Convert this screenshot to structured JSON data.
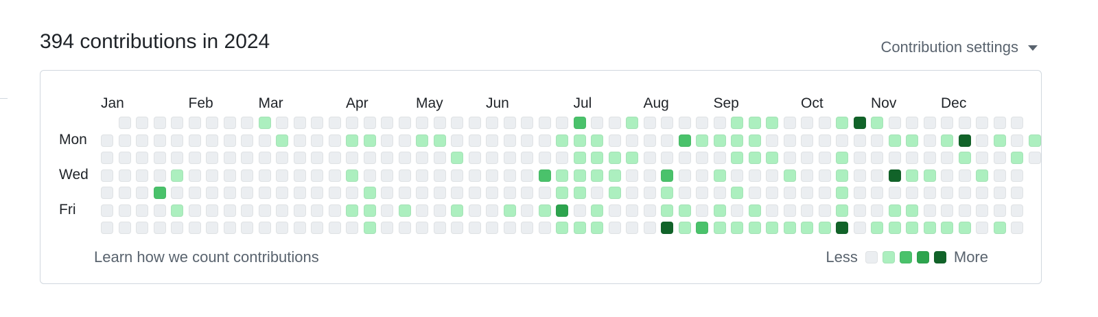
{
  "header": {
    "title": "394 contributions in 2024",
    "settings_label": "Contribution settings"
  },
  "graph": {
    "months": [
      {
        "label": "Jan",
        "week": 0
      },
      {
        "label": "Feb",
        "week": 5
      },
      {
        "label": "Mar",
        "week": 9
      },
      {
        "label": "Apr",
        "week": 14
      },
      {
        "label": "May",
        "week": 18
      },
      {
        "label": "Jun",
        "week": 22
      },
      {
        "label": "Jul",
        "week": 27
      },
      {
        "label": "Aug",
        "week": 31
      },
      {
        "label": "Sep",
        "week": 35
      },
      {
        "label": "Oct",
        "week": 40
      },
      {
        "label": "Nov",
        "week": 44
      },
      {
        "label": "Dec",
        "week": 48
      }
    ],
    "day_labels": [
      {
        "label": "Mon",
        "row": 1
      },
      {
        "label": "Wed",
        "row": 3
      },
      {
        "label": "Fri",
        "row": 5
      }
    ],
    "level_colors": [
      "#ebeef1",
      "#acefbf",
      "#4ac26b",
      "#2da44e",
      "#116329"
    ],
    "levels": [
      [
        9,
        0,
        0,
        0,
        0,
        0,
        0,
        0,
        0,
        1,
        0,
        0,
        0,
        0,
        0,
        0,
        0,
        0,
        0,
        0,
        0,
        0,
        0,
        0,
        0,
        0,
        0,
        2,
        0,
        0,
        1,
        0,
        0,
        0,
        0,
        0,
        1,
        1,
        1,
        0,
        0,
        0,
        1,
        4,
        1,
        0,
        0,
        0,
        0,
        0,
        0,
        0,
        0,
        9
      ],
      [
        0,
        0,
        0,
        0,
        0,
        0,
        0,
        0,
        0,
        0,
        1,
        0,
        0,
        0,
        1,
        1,
        0,
        0,
        1,
        1,
        0,
        0,
        0,
        0,
        0,
        0,
        1,
        1,
        1,
        0,
        0,
        0,
        0,
        2,
        1,
        1,
        1,
        1,
        0,
        0,
        0,
        0,
        0,
        0,
        0,
        1,
        1,
        0,
        1,
        4,
        0,
        1,
        0,
        1
      ],
      [
        0,
        0,
        0,
        0,
        0,
        0,
        0,
        0,
        0,
        0,
        0,
        0,
        0,
        0,
        0,
        0,
        0,
        0,
        0,
        0,
        1,
        0,
        0,
        0,
        0,
        0,
        0,
        1,
        1,
        1,
        1,
        0,
        0,
        0,
        0,
        0,
        1,
        1,
        1,
        0,
        0,
        0,
        1,
        0,
        0,
        0,
        0,
        0,
        0,
        1,
        0,
        0,
        1,
        0
      ],
      [
        0,
        0,
        0,
        0,
        1,
        0,
        0,
        0,
        0,
        0,
        0,
        0,
        0,
        0,
        1,
        0,
        0,
        0,
        0,
        0,
        0,
        0,
        0,
        0,
        0,
        2,
        1,
        1,
        1,
        1,
        0,
        0,
        2,
        0,
        0,
        1,
        0,
        0,
        0,
        1,
        0,
        0,
        1,
        0,
        0,
        4,
        1,
        1,
        0,
        0,
        1,
        0,
        0,
        9
      ],
      [
        0,
        0,
        0,
        2,
        0,
        0,
        0,
        0,
        0,
        0,
        0,
        0,
        0,
        0,
        0,
        1,
        0,
        0,
        0,
        0,
        0,
        0,
        0,
        0,
        0,
        0,
        1,
        1,
        0,
        1,
        0,
        0,
        1,
        0,
        0,
        0,
        1,
        0,
        0,
        0,
        0,
        0,
        1,
        0,
        0,
        0,
        0,
        0,
        0,
        0,
        0,
        0,
        0,
        9
      ],
      [
        0,
        0,
        0,
        0,
        1,
        0,
        0,
        0,
        0,
        0,
        0,
        0,
        0,
        0,
        1,
        1,
        0,
        1,
        0,
        0,
        1,
        0,
        0,
        1,
        0,
        1,
        3,
        0,
        1,
        0,
        0,
        0,
        1,
        1,
        0,
        1,
        0,
        1,
        0,
        0,
        0,
        0,
        1,
        0,
        0,
        1,
        1,
        0,
        0,
        0,
        0,
        0,
        0,
        9
      ],
      [
        0,
        0,
        0,
        0,
        0,
        0,
        0,
        0,
        0,
        0,
        0,
        0,
        0,
        0,
        0,
        1,
        0,
        0,
        0,
        0,
        0,
        0,
        0,
        0,
        0,
        0,
        1,
        1,
        1,
        0,
        0,
        0,
        4,
        1,
        2,
        1,
        1,
        1,
        1,
        1,
        1,
        1,
        4,
        0,
        1,
        1,
        1,
        1,
        1,
        1,
        0,
        1,
        0,
        9
      ]
    ]
  },
  "footer": {
    "learn_link": "Learn how we count contributions",
    "legend_less": "Less",
    "legend_more": "More"
  }
}
